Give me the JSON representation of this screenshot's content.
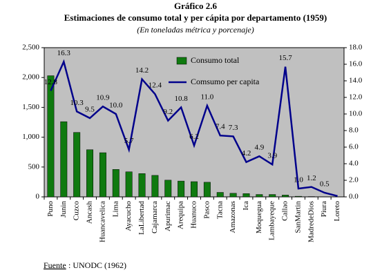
{
  "chart_data": {
    "type": "bar",
    "title": "Gráfico 2.6",
    "subtitle": "Estimaciones de consumo total y per cápita por departamento (1959)",
    "note": "(En toneladas métrica y porcenaje)",
    "source_label": "Fuente",
    "source_text": ": UNODC (1962)",
    "categories": [
      "Puno",
      "Junin",
      "Cuzco",
      "Ancash",
      "Huancavelica",
      "Lima",
      "Ayacucho",
      "LaLibertad",
      "Cajamarca",
      "Apurimac",
      "Arequipa",
      "Huanuco",
      "Pasco",
      "Tacna",
      "Amazonas",
      "Ica",
      "Moquegua",
      "Lambayeque",
      "Callao",
      "SanMartin",
      "MadredeDios",
      "Piura",
      "Loreto"
    ],
    "series": [
      {
        "name": "Consumo total",
        "type": "bar",
        "color": "#0f7a0f",
        "values": [
          2030,
          1260,
          1080,
          790,
          740,
          460,
          420,
          390,
          360,
          280,
          265,
          255,
          245,
          75,
          60,
          55,
          40,
          40,
          30,
          10,
          5,
          3,
          2
        ]
      },
      {
        "name": "Comsumo per capita",
        "type": "line",
        "axis": "y2",
        "color": "#00008b",
        "values": [
          12.8,
          16.3,
          10.3,
          9.5,
          10.9,
          10.0,
          5.7,
          14.2,
          12.4,
          9.2,
          10.8,
          6.2,
          11.0,
          7.4,
          7.3,
          4.2,
          4.9,
          3.9,
          15.7,
          1.0,
          1.2,
          0.5,
          0.1
        ],
        "value_labels": [
          "12.8",
          "16.3",
          "10.3",
          "9.5",
          "10.9",
          "10.0",
          "5.7",
          "14.2",
          "12.4",
          "9.2",
          "10.8",
          "6.2",
          "11.0",
          "7.4",
          "7.3",
          "4.2",
          "4.9",
          "3.9",
          "15.7",
          "1.0",
          "1.2",
          "0.5",
          null
        ]
      }
    ],
    "ylim": [
      0,
      2500
    ],
    "yticks": [
      0,
      500,
      {
        "value": 1000,
        "label": "1,000"
      },
      {
        "value": 1500,
        "label": "1,500"
      },
      {
        "value": 2000,
        "label": "2,000"
      },
      {
        "value": 2500,
        "label": "2,500"
      }
    ],
    "y2lim": [
      0,
      18
    ],
    "y2ticks": [
      {
        "value": 0,
        "label": "0.0"
      },
      {
        "value": 2,
        "label": "2.0"
      },
      {
        "value": 4,
        "label": "4.0"
      },
      {
        "value": 6,
        "label": "6.0"
      },
      {
        "value": 8,
        "label": "8.0"
      },
      {
        "value": 10,
        "label": "10.0"
      },
      {
        "value": 12,
        "label": "12.0"
      },
      {
        "value": 14,
        "label": "14.0"
      },
      {
        "value": 16,
        "label": "16.0"
      },
      {
        "value": 18,
        "label": "18.0"
      }
    ],
    "grid": false,
    "legend": "top"
  }
}
